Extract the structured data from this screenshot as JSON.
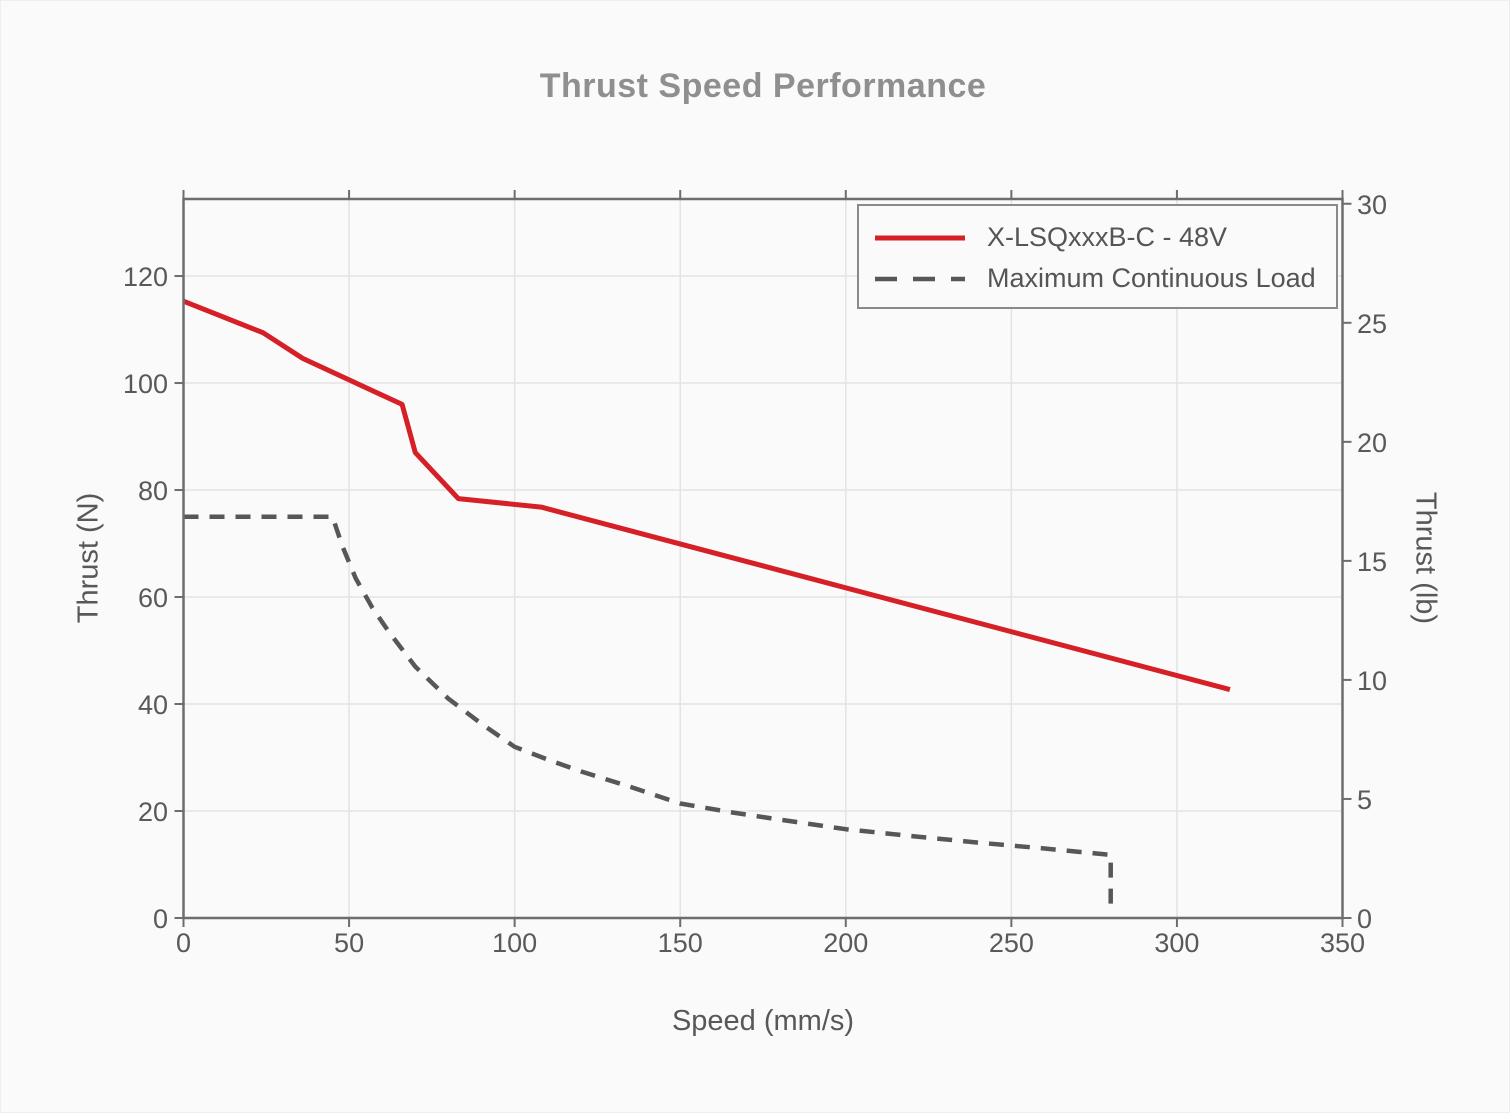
{
  "chart": {
    "title": "Thrust Speed Performance"
  },
  "chart_data": {
    "type": "line",
    "title": "Thrust Speed Performance",
    "xlabel": "Speed (mm/s)",
    "ylabel_left": "Thrust (N)",
    "ylabel_right": "Thrust (lb)",
    "xlim": [
      0,
      350
    ],
    "ylim_left": [
      0,
      134.4
    ],
    "ylim_right": [
      0,
      30.2
    ],
    "x_ticks": [
      0,
      50,
      100,
      150,
      200,
      250,
      300,
      350
    ],
    "y_left_ticks": [
      0,
      20,
      40,
      60,
      80,
      100,
      120
    ],
    "y_right_ticks": [
      0,
      5,
      10,
      15,
      20,
      25,
      30
    ],
    "grid": true,
    "legend_position": "top-right",
    "colors": {
      "series_red": "#d62027",
      "series_gray": "#57575a",
      "grid": "#e3e3e3",
      "spine": "#6d6d6d",
      "tick_label": "#595959"
    },
    "series": [
      {
        "name": "X-LSQxxxB-C - 48V",
        "style": "solid",
        "color": "#d62027",
        "axis": "left",
        "points": [
          [
            0,
            115.3
          ],
          [
            24,
            109.4
          ],
          [
            36,
            104.6
          ],
          [
            66,
            96.0
          ],
          [
            70,
            87.0
          ],
          [
            83,
            78.4
          ],
          [
            108,
            76.8
          ],
          [
            316,
            42.7
          ]
        ]
      },
      {
        "name": "Maximum Continuous Load",
        "style": "dashed",
        "color": "#57575a",
        "axis": "left",
        "points": [
          [
            0,
            75
          ],
          [
            45,
            75
          ],
          [
            48,
            69.5
          ],
          [
            52,
            63.5
          ],
          [
            57,
            58
          ],
          [
            62,
            53.5
          ],
          [
            70,
            47
          ],
          [
            80,
            41
          ],
          [
            90,
            36.3
          ],
          [
            100,
            32
          ],
          [
            110,
            29.6
          ],
          [
            120,
            27.4
          ],
          [
            135,
            24.5
          ],
          [
            150,
            21.4
          ],
          [
            165,
            19.8
          ],
          [
            180,
            18.4
          ],
          [
            200,
            16.6
          ],
          [
            220,
            15.3
          ],
          [
            240,
            14.1
          ],
          [
            260,
            13.0
          ],
          [
            278,
            11.9
          ],
          [
            280,
            11.8
          ],
          [
            280,
            1.2
          ]
        ]
      }
    ]
  }
}
